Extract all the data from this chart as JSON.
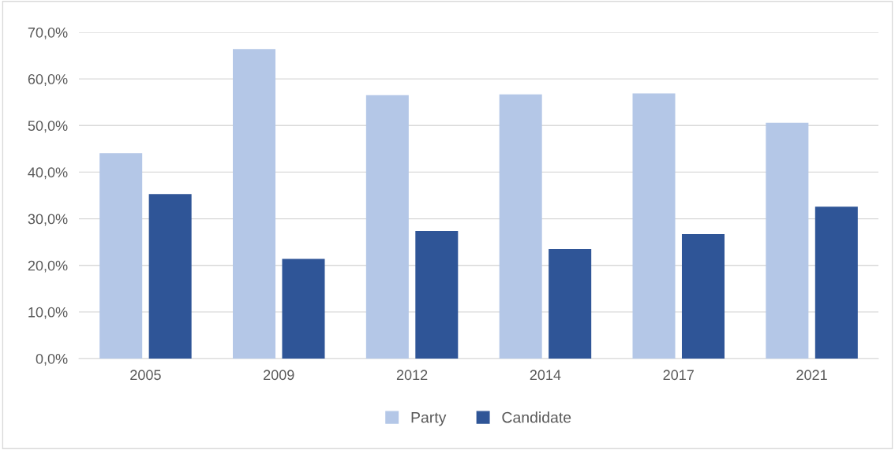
{
  "chart_data": {
    "type": "bar",
    "categories": [
      "2005",
      "2009",
      "2012",
      "2014",
      "2017",
      "2021"
    ],
    "series": [
      {
        "name": "Party",
        "color": "#b4c7e7",
        "values": [
          44.1,
          66.4,
          56.5,
          56.7,
          56.9,
          50.6
        ]
      },
      {
        "name": "Candidate",
        "color": "#2f5597",
        "values": [
          35.3,
          21.4,
          27.4,
          23.5,
          26.7,
          32.6
        ]
      }
    ],
    "ylim": [
      0,
      70
    ],
    "yticks": [
      {
        "value": 0,
        "label": "0,0%"
      },
      {
        "value": 10,
        "label": "10,0%"
      },
      {
        "value": 20,
        "label": "20,0%"
      },
      {
        "value": 30,
        "label": "30,0%"
      },
      {
        "value": 40,
        "label": "40,0%"
      },
      {
        "value": 50,
        "label": "50,0%"
      },
      {
        "value": 60,
        "label": "60,0%"
      },
      {
        "value": 70,
        "label": "70,0%"
      }
    ],
    "grid": "y",
    "legend": "bottom"
  }
}
